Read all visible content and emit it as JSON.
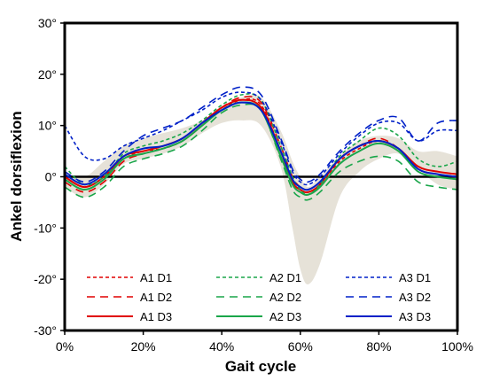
{
  "chart_data": {
    "type": "line",
    "xlabel": "Gait cycle",
    "ylabel": "Ankel dorsiflexion",
    "xlim": [
      0,
      100
    ],
    "ylim": [
      -30,
      30
    ],
    "xticks": [
      0,
      20,
      40,
      60,
      80,
      100
    ],
    "xtick_labels": [
      "0%",
      "20%",
      "40%",
      "60%",
      "80%",
      "100%"
    ],
    "yticks": [
      30,
      20,
      10,
      0,
      -10,
      -20,
      -30
    ],
    "ytick_labels": [
      "30°",
      "20°",
      "10°",
      "0°",
      "-10°",
      "-20°",
      "-30°"
    ],
    "grid": false,
    "legend_position": "bottom",
    "colors": {
      "A1": "#e00000",
      "A2": "#1aa64a",
      "A3": "#0020c8",
      "band": "#e6e2d8",
      "zero_line": "#000000"
    },
    "normal_band": {
      "x": [
        0,
        5,
        10,
        15,
        20,
        25,
        30,
        35,
        40,
        45,
        50,
        55,
        58,
        60,
        62,
        65,
        70,
        75,
        80,
        85,
        90,
        95,
        100
      ],
      "upper": [
        1,
        0,
        3,
        6,
        7.5,
        8.5,
        9.5,
        11,
        13.5,
        15.5,
        15.5,
        9,
        3,
        0,
        -2,
        0,
        4,
        7,
        8,
        7.5,
        5,
        5,
        4
      ],
      "lower": [
        -2,
        -4,
        -1.5,
        2.5,
        3.5,
        4.5,
        6,
        8.5,
        10.5,
        11,
        10,
        2,
        -10,
        -18,
        -21,
        -17,
        -4,
        1,
        3.5,
        4.5,
        1.5,
        -1.5,
        -2.5
      ]
    },
    "x": [
      0,
      5,
      10,
      15,
      20,
      25,
      30,
      35,
      40,
      45,
      50,
      55,
      58,
      60,
      62,
      65,
      70,
      75,
      80,
      85,
      90,
      95,
      100
    ],
    "series": [
      {
        "name": "A1 D1",
        "dash": "dotted",
        "values": [
          0,
          -2,
          0,
          3.5,
          5,
          5.5,
          7,
          10,
          13,
          15,
          14,
          5,
          -1,
          -2.5,
          -3,
          -1.5,
          3,
          5.5,
          7,
          5.5,
          1.5,
          0.5,
          0
        ]
      },
      {
        "name": "A1 D2",
        "dash": "dashed",
        "values": [
          -1,
          -3,
          -1,
          3,
          4.5,
          5.5,
          7,
          10,
          13.5,
          15.5,
          14.5,
          6,
          0,
          -2,
          -2.5,
          -1,
          3.5,
          6,
          7.5,
          5.5,
          1.5,
          0.5,
          0
        ]
      },
      {
        "name": "A1 D3",
        "dash": "solid",
        "values": [
          0,
          -2,
          0,
          4,
          5,
          6,
          7.5,
          10.5,
          13.5,
          15,
          13.5,
          5,
          -1,
          -2.5,
          -3,
          -1.5,
          3.5,
          6,
          7,
          5.5,
          2,
          1,
          0.5
        ]
      },
      {
        "name": "A2 D1",
        "dash": "dotted",
        "values": [
          2,
          -1.5,
          0,
          4.5,
          6,
          7,
          8.5,
          11,
          14,
          16,
          15,
          6,
          0,
          -2.5,
          -3.5,
          -1.5,
          4,
          7,
          9.5,
          8,
          3.5,
          2,
          3
        ]
      },
      {
        "name": "A2 D2",
        "dash": "dashed",
        "values": [
          -2,
          -4,
          -2,
          2,
          3.5,
          4.5,
          6,
          9,
          12.5,
          14,
          13,
          3.5,
          -2.5,
          -4,
          -4.5,
          -3,
          1,
          3,
          4,
          3,
          -1,
          -2,
          -2.5
        ]
      },
      {
        "name": "A2 D3",
        "dash": "solid",
        "values": [
          -0.5,
          -2.5,
          -0.5,
          3.5,
          4.5,
          5.5,
          7,
          10,
          13,
          14.5,
          13,
          4,
          -1.5,
          -3,
          -3.5,
          -2,
          2.5,
          5,
          6.5,
          5,
          1,
          0,
          -0.5
        ]
      },
      {
        "name": "A3 D1",
        "dash": "dotted",
        "values": [
          10,
          4,
          3.5,
          6,
          7.5,
          9,
          11,
          13,
          15.5,
          16.5,
          15,
          7,
          1,
          -1,
          -1.5,
          0,
          4.5,
          8,
          10.5,
          10.5,
          7,
          9,
          9
        ]
      },
      {
        "name": "A3 D2",
        "dash": "dashed",
        "values": [
          1,
          -1,
          1,
          5,
          8,
          9.5,
          11,
          13.5,
          16,
          17.5,
          16,
          7.5,
          1.5,
          -0.5,
          -1,
          0.5,
          5,
          8.5,
          11,
          11.5,
          7,
          10.5,
          11
        ]
      },
      {
        "name": "A3 D3",
        "dash": "solid",
        "values": [
          0.5,
          -1.5,
          0.5,
          4,
          5.5,
          6,
          7.5,
          10.5,
          13,
          14.5,
          13,
          5,
          -0.5,
          -2,
          -2.5,
          -1,
          3.5,
          6,
          7,
          5.5,
          1.5,
          0.5,
          0
        ]
      }
    ]
  }
}
